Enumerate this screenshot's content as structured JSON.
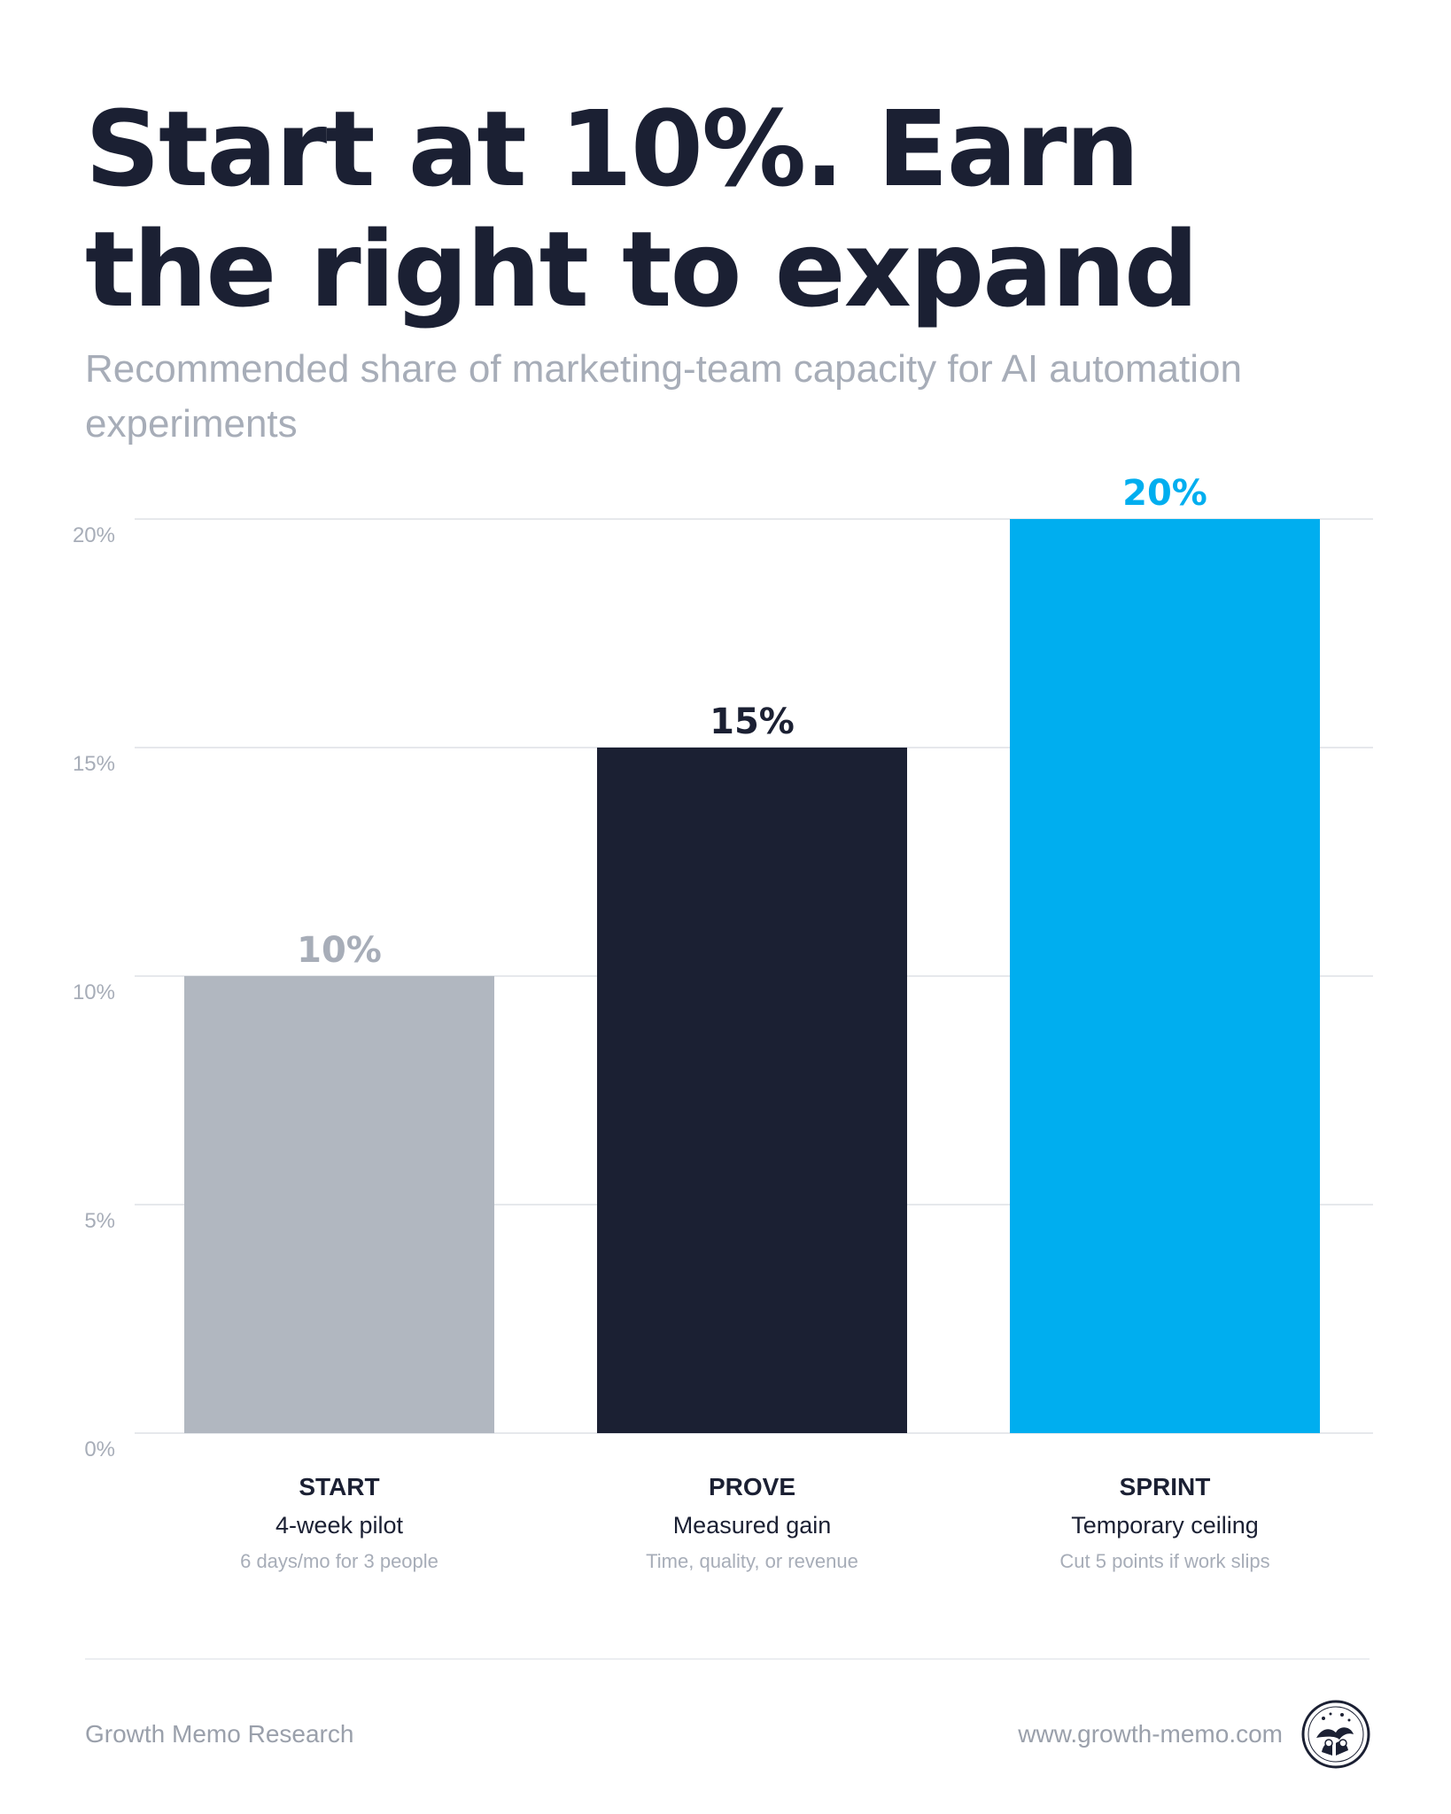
{
  "header": {
    "title": "Start at 10%. Earn the right to expand",
    "subtitle": "Recommended share of marketing-team capacity for AI automation experiments"
  },
  "chart_data": {
    "type": "bar",
    "categories": [
      "START",
      "PROVE",
      "SPRINT"
    ],
    "category_sublabels": [
      "4-week pilot",
      "Measured gain",
      "Temporary ceiling"
    ],
    "category_notes": [
      "6 days/mo for 3 people",
      "Time, quality, or revenue",
      "Cut 5 points if work slips"
    ],
    "values": [
      10,
      15,
      20
    ],
    "value_labels": [
      "10%",
      "15%",
      "20%"
    ],
    "bar_colors": [
      "#b1b7c0",
      "#1b2033",
      "#00aeef"
    ],
    "value_label_colors": [
      "#a7adb8",
      "#1b2033",
      "#00aeef"
    ],
    "ylim": [
      0,
      20
    ],
    "yticks": [
      0,
      5,
      10,
      15,
      20
    ],
    "ytick_labels": [
      "0%",
      "5%",
      "10%",
      "15%",
      "20%"
    ],
    "grid": true,
    "legend": "none"
  },
  "footer": {
    "source": "Growth Memo Research",
    "url": "www.growth-memo.com",
    "logo_icon": "circular-badge-logo-icon"
  }
}
